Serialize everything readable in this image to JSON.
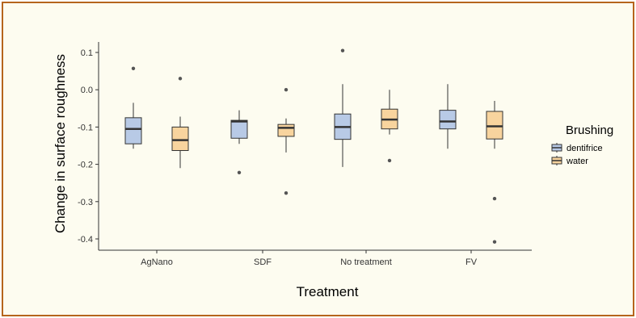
{
  "chart_data": {
    "type": "boxplot",
    "xlabel": "Treatment",
    "ylabel": "Change in surface roughness",
    "ylim": [
      -0.43,
      0.13
    ],
    "yticks": [
      0.1,
      0.0,
      -0.1,
      -0.2,
      -0.3,
      -0.4
    ],
    "ytick_labels": [
      "0.1",
      "0.0",
      "-0.1",
      "-0.2",
      "-0.3",
      "-0.4"
    ],
    "categories": [
      "AgNano",
      "SDF",
      "No treatment",
      "FV"
    ],
    "legend": {
      "title": "Brushing",
      "position": "right"
    },
    "series": [
      {
        "name": "dentifrice",
        "color": "#b8cae6",
        "boxes": [
          {
            "whisker_low": -0.158,
            "q1": -0.145,
            "median": -0.105,
            "q3": -0.075,
            "whisker_high": -0.035,
            "outliers": [
              0.057
            ]
          },
          {
            "whisker_low": -0.145,
            "q1": -0.13,
            "median": -0.085,
            "q3": -0.082,
            "whisker_high": -0.055,
            "outliers": [
              -0.222
            ]
          },
          {
            "whisker_low": -0.207,
            "q1": -0.133,
            "median": -0.1,
            "q3": -0.065,
            "whisker_high": 0.015,
            "outliers": [
              0.105
            ]
          },
          {
            "whisker_low": -0.158,
            "q1": -0.105,
            "median": -0.085,
            "q3": -0.055,
            "whisker_high": 0.015,
            "outliers": []
          }
        ]
      },
      {
        "name": "water",
        "color": "#f8d49e",
        "boxes": [
          {
            "whisker_low": -0.21,
            "q1": -0.163,
            "median": -0.135,
            "q3": -0.1,
            "whisker_high": -0.072,
            "outliers": [
              0.03
            ]
          },
          {
            "whisker_low": -0.168,
            "q1": -0.125,
            "median": -0.102,
            "q3": -0.093,
            "whisker_high": -0.077,
            "outliers": [
              0.0,
              -0.277
            ]
          },
          {
            "whisker_low": -0.12,
            "q1": -0.105,
            "median": -0.08,
            "q3": -0.052,
            "whisker_high": 0.0,
            "outliers": [
              -0.19
            ]
          },
          {
            "whisker_low": -0.158,
            "q1": -0.132,
            "median": -0.098,
            "q3": -0.058,
            "whisker_high": -0.03,
            "outliers": [
              -0.292,
              -0.408
            ]
          }
        ]
      }
    ]
  }
}
